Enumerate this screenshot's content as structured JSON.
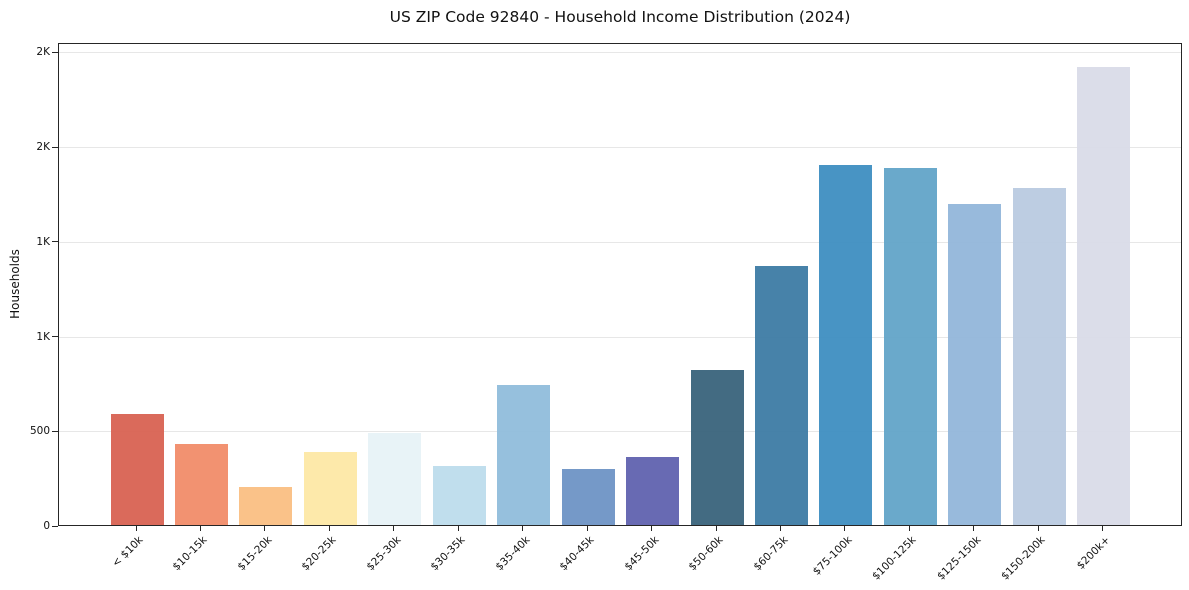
{
  "chart_data": {
    "type": "bar",
    "title": "US ZIP Code 92840 - Household Income Distribution (2024)",
    "xlabel": "",
    "ylabel": "Households",
    "categories": [
      "< $10k",
      "$10-15k",
      "$15-20k",
      "$20-25k",
      "$25-30k",
      "$30-35k",
      "$35-40k",
      "$40-45k",
      "$45-50k",
      "$50-60k",
      "$60-75k",
      "$75-100k",
      "$100-125k",
      "$125-150k",
      "$150-200k",
      "$200k+"
    ],
    "values": [
      585,
      430,
      200,
      385,
      485,
      310,
      740,
      295,
      360,
      820,
      1370,
      1900,
      1885,
      1695,
      1780,
      2420
    ],
    "bar_colors": [
      "#d75f4f",
      "#f18a66",
      "#fabd80",
      "#fde7a4",
      "#e6f2f6",
      "#bbdcec",
      "#8ebbda",
      "#6b91c4",
      "#5c5fad",
      "#356079",
      "#3979a3",
      "#3a8cc0",
      "#5fa2c7",
      "#90b5d9",
      "#b8c9e0",
      "#d8dae7"
    ],
    "ylim": [
      0,
      2550
    ],
    "yticks": [
      {
        "value": 0,
        "label": "0"
      },
      {
        "value": 500,
        "label": "500"
      },
      {
        "value": 1000,
        "label": "1K"
      },
      {
        "value": 1500,
        "label": "1K"
      },
      {
        "value": 2000,
        "label": "2K"
      },
      {
        "value": 2500,
        "label": "2K"
      }
    ],
    "grid": "horizontal",
    "legend": "none",
    "x_tick_rotation_deg": 45
  },
  "colors": {
    "background": "#ffffff",
    "gridline": "#e7e7e7",
    "spine": "#262626",
    "text": "#111111"
  }
}
